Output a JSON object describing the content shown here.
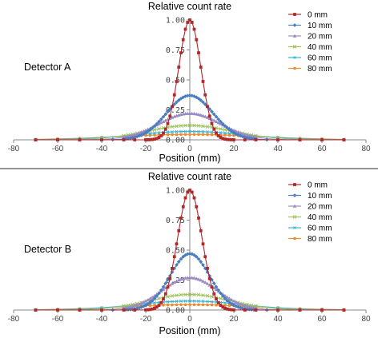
{
  "chart_data": [
    {
      "type": "line",
      "title": "Relative count rate",
      "xlabel": "Position (mm)",
      "ylabel": "",
      "annotation": "Detector A",
      "xlim": [
        -80,
        80
      ],
      "ylim": [
        0,
        1.0
      ],
      "x_ticks": [
        -80,
        -60,
        -40,
        -20,
        0,
        20,
        40,
        60,
        80
      ],
      "y_ticks": [
        0.0,
        0.25,
        0.5,
        0.75,
        1.0
      ],
      "y_tick_labels": [
        "0.00",
        "0.25",
        "0.50",
        "0.75",
        "1.00"
      ],
      "legend_position": "top-right",
      "grid": false,
      "series": [
        {
          "name": "0 mm",
          "color": "#b0282a",
          "marker": "square",
          "sigma": 5.0,
          "peak": 1.0,
          "dx": 1,
          "range": [
            -20,
            20
          ],
          "tails": [
            -70,
            -60,
            -50,
            -40,
            -30,
            -25,
            25,
            30,
            40,
            50,
            60,
            70
          ]
        },
        {
          "name": "10 mm",
          "color": "#4a7dbf",
          "marker": "diamond",
          "sigma": 10.5,
          "peak": 0.37,
          "dx": 1,
          "range": [
            -30,
            30
          ],
          "tails": [
            -70,
            -60,
            -50,
            -40,
            -35,
            35,
            40,
            50,
            60,
            70
          ]
        },
        {
          "name": "20 mm",
          "color": "#9b8bc4",
          "marker": "triangle",
          "sigma": 14.0,
          "peak": 0.22,
          "dx": 1,
          "range": [
            -30,
            30
          ],
          "tails": [
            -70,
            -60,
            -50,
            -40,
            -35,
            35,
            40,
            50,
            60,
            70
          ]
        },
        {
          "name": "40 mm",
          "color": "#9bc25a",
          "marker": "x",
          "sigma": 19.0,
          "peak": 0.12,
          "dx": 2,
          "range": [
            -30,
            30
          ],
          "tails": [
            -70,
            -60,
            -50,
            -40,
            40,
            50,
            60,
            70
          ]
        },
        {
          "name": "60 mm",
          "color": "#3cb4d8",
          "marker": "star",
          "sigma": 25.0,
          "peak": 0.07,
          "dx": 2,
          "range": [
            -30,
            30
          ],
          "tails": [
            -70,
            -60,
            -50,
            -40,
            40,
            50,
            60,
            70
          ]
        },
        {
          "name": "80 mm",
          "color": "#f08a2c",
          "marker": "circle",
          "sigma": 32.0,
          "peak": 0.045,
          "dx": 2,
          "range": [
            -30,
            30
          ],
          "tails": [
            -70,
            -60,
            -50,
            -40,
            40,
            50,
            60,
            70
          ]
        }
      ]
    },
    {
      "type": "line",
      "title": "Relative count rate",
      "xlabel": "Position (mm)",
      "ylabel": "",
      "annotation": "Detector B",
      "xlim": [
        -80,
        80
      ],
      "ylim": [
        0,
        1.0
      ],
      "x_ticks": [
        -80,
        -60,
        -40,
        -20,
        0,
        20,
        40,
        60,
        80
      ],
      "y_ticks": [
        0.0,
        0.25,
        0.5,
        0.75,
        1.0
      ],
      "y_tick_labels": [
        "0.00",
        "0.25",
        "0.50",
        "0.75",
        "1.00"
      ],
      "legend_position": "top-right",
      "grid": false,
      "series": [
        {
          "name": "0 mm",
          "color": "#b0282a",
          "marker": "square",
          "sigma": 5.5,
          "peak": 1.0,
          "dx": 1,
          "range": [
            -20,
            20
          ],
          "tails": [
            -70,
            -60,
            -50,
            -40,
            -30,
            -25,
            25,
            30,
            40,
            50,
            60,
            70
          ]
        },
        {
          "name": "10 mm",
          "color": "#4a7dbf",
          "marker": "diamond",
          "sigma": 9.0,
          "peak": 0.47,
          "dx": 1,
          "range": [
            -30,
            30
          ],
          "tails": [
            -70,
            -60,
            -50,
            -40,
            -35,
            35,
            40,
            50,
            60,
            70
          ]
        },
        {
          "name": "20 mm",
          "color": "#9b8bc4",
          "marker": "triangle",
          "sigma": 12.5,
          "peak": 0.27,
          "dx": 1,
          "range": [
            -30,
            30
          ],
          "tails": [
            -70,
            -60,
            -50,
            -40,
            -35,
            35,
            40,
            50,
            60,
            70
          ]
        },
        {
          "name": "40 mm",
          "color": "#9bc25a",
          "marker": "x",
          "sigma": 18.0,
          "peak": 0.13,
          "dx": 2,
          "range": [
            -30,
            30
          ],
          "tails": [
            -70,
            -60,
            -50,
            -40,
            40,
            50,
            60,
            70
          ]
        },
        {
          "name": "60 mm",
          "color": "#3cb4d8",
          "marker": "star",
          "sigma": 24.0,
          "peak": 0.075,
          "dx": 2,
          "range": [
            -30,
            30
          ],
          "tails": [
            -70,
            -60,
            -50,
            -40,
            40,
            50,
            60,
            70
          ]
        },
        {
          "name": "80 mm",
          "color": "#f08a2c",
          "marker": "circle",
          "sigma": 30.0,
          "peak": 0.045,
          "dx": 2,
          "range": [
            -30,
            30
          ],
          "tails": [
            -70,
            -60,
            -50,
            -40,
            40,
            50,
            60,
            70
          ]
        }
      ]
    }
  ]
}
